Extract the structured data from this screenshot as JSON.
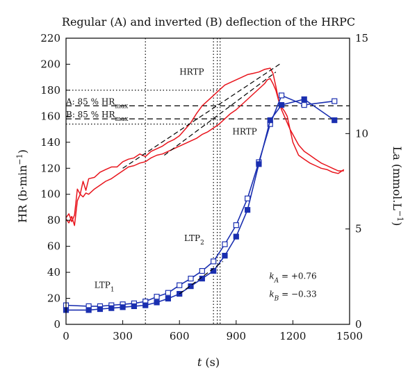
{
  "chart_data": {
    "type": "line",
    "title": "Regular (A) and inverted (B) deflection of the HRPC",
    "xlabel_var": "t",
    "xlabel_unit": " (s)",
    "ylabel_left": "HR (b·min",
    "ylabel_left_sup": "−1",
    "ylabel_left_close": ")",
    "ylabel_right": "La (mmol.L",
    "ylabel_right_sup": "−1",
    "ylabel_right_close": ")",
    "x_ticks": [
      0,
      300,
      600,
      900,
      1200,
      1500
    ],
    "y_left_ticks": [
      0,
      20,
      40,
      60,
      80,
      100,
      120,
      140,
      160,
      180,
      200,
      220
    ],
    "y_right_ticks": [
      0,
      5,
      10,
      15
    ],
    "xlim": [
      0,
      1500
    ],
    "ylim_left": [
      0,
      220
    ],
    "ylim_right": [
      0,
      15
    ],
    "colors": {
      "hr": "#e8141c",
      "la": "#1a2fb0",
      "ref": "#000000"
    },
    "series": [
      {
        "name": "HR A",
        "axis": "left",
        "style": "hr",
        "points": [
          [
            0,
            82
          ],
          [
            15,
            85
          ],
          [
            30,
            79
          ],
          [
            45,
            84
          ],
          [
            60,
            104
          ],
          [
            75,
            100
          ],
          [
            90,
            110
          ],
          [
            105,
            103
          ],
          [
            120,
            112
          ],
          [
            150,
            113
          ],
          [
            180,
            117
          ],
          [
            210,
            119
          ],
          [
            240,
            121
          ],
          [
            270,
            121
          ],
          [
            300,
            125
          ],
          [
            330,
            127
          ],
          [
            360,
            128
          ],
          [
            390,
            131
          ],
          [
            420,
            129
          ],
          [
            450,
            133
          ],
          [
            480,
            135
          ],
          [
            510,
            137
          ],
          [
            540,
            140
          ],
          [
            570,
            142
          ],
          [
            600,
            145
          ],
          [
            630,
            150
          ],
          [
            660,
            155
          ],
          [
            690,
            162
          ],
          [
            720,
            168
          ],
          [
            750,
            172
          ],
          [
            780,
            176
          ],
          [
            810,
            180
          ],
          [
            840,
            184
          ],
          [
            870,
            186
          ],
          [
            900,
            188
          ],
          [
            930,
            190
          ],
          [
            960,
            192
          ],
          [
            990,
            193
          ],
          [
            1020,
            194
          ],
          [
            1050,
            196
          ],
          [
            1080,
            197
          ],
          [
            1095,
            193
          ],
          [
            1110,
            183
          ],
          [
            1125,
            172
          ],
          [
            1140,
            167
          ],
          [
            1155,
            164
          ],
          [
            1170,
            160
          ],
          [
            1185,
            150
          ],
          [
            1200,
            140
          ],
          [
            1215,
            135
          ],
          [
            1230,
            130
          ],
          [
            1260,
            127
          ],
          [
            1290,
            124
          ],
          [
            1320,
            122
          ],
          [
            1350,
            120
          ],
          [
            1380,
            119
          ],
          [
            1410,
            117
          ],
          [
            1440,
            116
          ],
          [
            1470,
            119
          ]
        ]
      },
      {
        "name": "HR B",
        "axis": "left",
        "style": "hr",
        "points": [
          [
            0,
            81
          ],
          [
            15,
            78
          ],
          [
            30,
            83
          ],
          [
            45,
            76
          ],
          [
            60,
            95
          ],
          [
            75,
            100
          ],
          [
            90,
            98
          ],
          [
            105,
            101
          ],
          [
            120,
            100
          ],
          [
            150,
            104
          ],
          [
            180,
            107
          ],
          [
            210,
            110
          ],
          [
            240,
            112
          ],
          [
            270,
            115
          ],
          [
            300,
            118
          ],
          [
            330,
            121
          ],
          [
            360,
            122
          ],
          [
            390,
            124
          ],
          [
            420,
            125
          ],
          [
            450,
            128
          ],
          [
            480,
            130
          ],
          [
            510,
            131
          ],
          [
            540,
            133
          ],
          [
            570,
            135
          ],
          [
            600,
            137
          ],
          [
            630,
            139
          ],
          [
            660,
            141
          ],
          [
            690,
            143
          ],
          [
            720,
            146
          ],
          [
            750,
            148
          ],
          [
            780,
            151
          ],
          [
            810,
            154
          ],
          [
            840,
            158
          ],
          [
            870,
            162
          ],
          [
            900,
            165
          ],
          [
            930,
            169
          ],
          [
            960,
            173
          ],
          [
            990,
            177
          ],
          [
            1020,
            181
          ],
          [
            1050,
            185
          ],
          [
            1065,
            188
          ],
          [
            1080,
            189
          ],
          [
            1095,
            185
          ],
          [
            1110,
            180
          ],
          [
            1125,
            172
          ],
          [
            1140,
            165
          ],
          [
            1155,
            160
          ],
          [
            1170,
            155
          ],
          [
            1185,
            150
          ],
          [
            1200,
            146
          ],
          [
            1215,
            142
          ],
          [
            1230,
            138
          ],
          [
            1260,
            133
          ],
          [
            1290,
            130
          ],
          [
            1320,
            127
          ],
          [
            1350,
            124
          ],
          [
            1380,
            122
          ],
          [
            1410,
            120
          ],
          [
            1440,
            118
          ],
          [
            1470,
            118
          ]
        ]
      },
      {
        "name": "La open",
        "axis": "right",
        "style": "la_open",
        "points": [
          [
            0,
            1.0
          ],
          [
            120,
            0.95
          ],
          [
            180,
            0.95
          ],
          [
            240,
            1.0
          ],
          [
            300,
            1.05
          ],
          [
            360,
            1.1
          ],
          [
            420,
            1.2
          ],
          [
            480,
            1.45
          ],
          [
            540,
            1.65
          ],
          [
            600,
            2.05
          ],
          [
            660,
            2.4
          ],
          [
            720,
            2.8
          ],
          [
            780,
            3.3
          ],
          [
            840,
            4.2
          ],
          [
            900,
            5.2
          ],
          [
            960,
            6.6
          ],
          [
            1020,
            8.5
          ],
          [
            1080,
            10.5
          ],
          [
            1140,
            12.0
          ],
          [
            1260,
            11.5
          ],
          [
            1420,
            11.7
          ]
        ]
      },
      {
        "name": "La filled",
        "axis": "right",
        "style": "la_filled",
        "points": [
          [
            0,
            0.75
          ],
          [
            120,
            0.75
          ],
          [
            180,
            0.8
          ],
          [
            240,
            0.85
          ],
          [
            300,
            0.9
          ],
          [
            360,
            0.95
          ],
          [
            420,
            1.0
          ],
          [
            480,
            1.15
          ],
          [
            540,
            1.35
          ],
          [
            600,
            1.6
          ],
          [
            660,
            2.0
          ],
          [
            720,
            2.4
          ],
          [
            780,
            2.8
          ],
          [
            840,
            3.6
          ],
          [
            900,
            4.6
          ],
          [
            960,
            6.0
          ],
          [
            1020,
            8.4
          ],
          [
            1080,
            10.7
          ],
          [
            1140,
            11.5
          ],
          [
            1260,
            11.8
          ],
          [
            1420,
            10.7
          ]
        ]
      },
      {
        "name": "HR trend A",
        "axis": "left",
        "style": "dashed",
        "points": [
          [
            300,
            120
          ],
          [
            1140,
            201
          ]
        ]
      },
      {
        "name": "HR trend B",
        "axis": "left",
        "style": "dashed",
        "points": [
          [
            520,
            130
          ],
          [
            1110,
            194
          ]
        ]
      },
      {
        "name": "La trend",
        "axis": "right",
        "style": "dashed",
        "points": [
          [
            600,
            1.6
          ],
          [
            830,
            3.3
          ]
        ]
      }
    ],
    "reference_lines": {
      "vertical_x": [
        420,
        780,
        800,
        815
      ],
      "horizontal_left": [
        {
          "y": 180,
          "x_end": 800,
          "style": "dotted"
        },
        {
          "y": 168,
          "x_end": 1500,
          "style": "dashed"
        },
        {
          "y": 158,
          "x_end": 1500,
          "style": "dashed"
        },
        {
          "y": 154,
          "x_end": 815,
          "style": "dotted"
        }
      ]
    },
    "annotations": [
      {
        "text": "HRTP",
        "x": 600,
        "y_left": 192
      },
      {
        "text": "HRTP",
        "x": 880,
        "y_left": 146
      },
      {
        "text": "A: 85 % HR",
        "sub": "max",
        "x": 0,
        "y_left": 169
      },
      {
        "text": "B: 85 % HR",
        "sub": "max",
        "x": 0,
        "y_left": 159
      },
      {
        "text": "LTP",
        "sub": "1",
        "x": 150,
        "y_left": 28
      },
      {
        "text": "LTP",
        "sub": "2",
        "x": 625,
        "y_left": 64
      },
      {
        "text": "k",
        "sub": "A",
        "rest": " = +0.76",
        "x": 1075,
        "y_left": 35
      },
      {
        "text": "k",
        "sub": "B",
        "rest": " = −0.33",
        "x": 1075,
        "y_left": 21
      }
    ]
  }
}
